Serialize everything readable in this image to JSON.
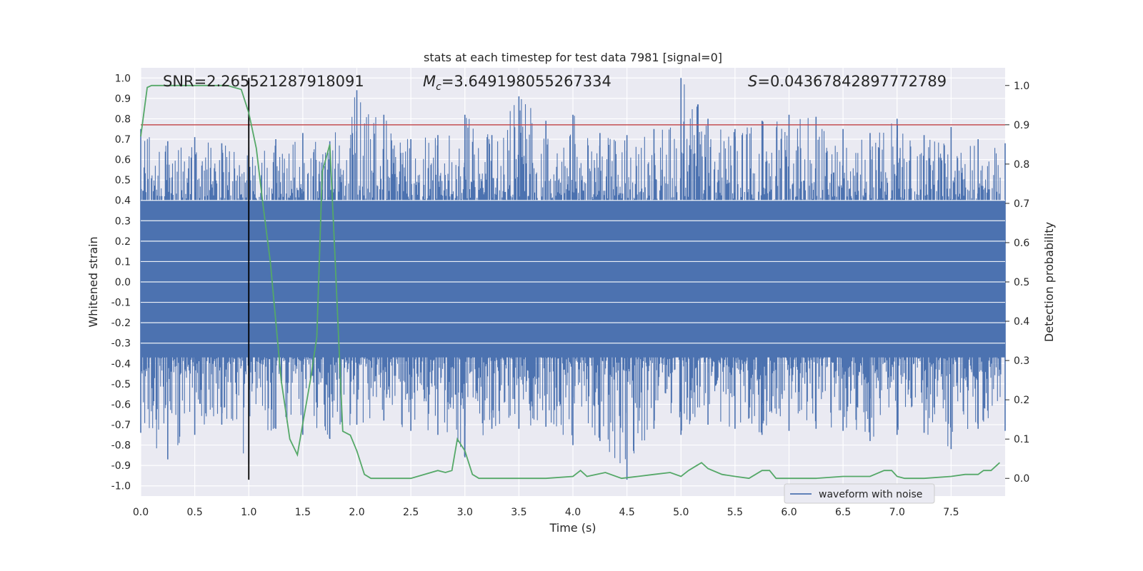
{
  "chart_data": {
    "type": "line",
    "title": "stats at each timestep for test data 7981 [signal=0]",
    "xlabel": "Time (s)",
    "ylabel": "Whitened strain",
    "y2label": "Detection probability",
    "xlim": [
      0,
      8
    ],
    "ylim": [
      -1.05,
      1.05
    ],
    "y2lim": [
      -0.045,
      1.045
    ],
    "x_ticks": [
      "0.0",
      "0.5",
      "1.0",
      "1.5",
      "2.0",
      "2.5",
      "3.0",
      "3.5",
      "4.0",
      "4.5",
      "5.0",
      "5.5",
      "6.0",
      "6.5",
      "7.0",
      "7.5"
    ],
    "y_ticks": [
      "1.0",
      "0.9",
      "0.8",
      "0.7",
      "0.6",
      "0.5",
      "0.4",
      "0.3",
      "0.2",
      "0.1",
      "0.0",
      "-0.1",
      "-0.2",
      "-0.3",
      "-0.4",
      "-0.5",
      "-0.6",
      "-0.7",
      "-0.8",
      "-0.9",
      "-1.0"
    ],
    "y2_ticks": [
      "1.0",
      "0.9",
      "0.8",
      "0.7",
      "0.6",
      "0.5",
      "0.4",
      "0.3",
      "0.2",
      "0.1",
      "0.0"
    ],
    "annotations": {
      "snr": "SNR=2.265521287918091",
      "mc_symbol": "M",
      "mc_sub": "c",
      "mc_value": "=3.649198055267334",
      "s_symbol": "S",
      "s_value": "=0.04367842897772789"
    },
    "threshold": {
      "value": 0.9,
      "axis": "y2",
      "color": "#c44e52"
    },
    "marker_line": {
      "x": 1.0,
      "y_range": [
        -0.97,
        1.0
      ],
      "color": "#000000"
    },
    "legend": {
      "label": "waveform with noise",
      "placement": "lower right"
    },
    "grid": true,
    "series": [
      {
        "name": "waveform with noise",
        "axis": "y",
        "color": "#4c72b0",
        "representation": "dense noise trace; sampled envelope",
        "x": [
          0.0,
          0.25,
          0.5,
          0.75,
          1.0,
          1.25,
          1.5,
          1.75,
          2.0,
          2.25,
          2.5,
          2.75,
          3.0,
          3.25,
          3.5,
          3.75,
          4.0,
          4.25,
          4.5,
          4.75,
          5.0,
          5.25,
          5.5,
          5.75,
          6.0,
          6.25,
          6.5,
          6.75,
          7.0,
          7.25,
          7.5,
          7.75,
          8.0
        ],
        "upper": [
          0.75,
          0.69,
          0.71,
          0.68,
          0.66,
          0.7,
          0.73,
          0.69,
          0.94,
          0.82,
          0.7,
          0.72,
          0.82,
          0.72,
          0.91,
          0.79,
          0.82,
          0.73,
          0.72,
          0.75,
          1.0,
          0.8,
          0.75,
          0.79,
          0.82,
          0.81,
          0.75,
          0.73,
          0.8,
          0.72,
          0.76,
          0.7,
          0.68
        ],
        "lower": [
          -0.74,
          -0.87,
          -0.75,
          -0.7,
          -0.89,
          -0.72,
          -0.75,
          -0.77,
          -0.7,
          -0.68,
          -0.73,
          -0.75,
          -0.86,
          -0.72,
          -0.72,
          -0.71,
          -0.8,
          -0.78,
          -0.97,
          -0.72,
          -0.75,
          -0.7,
          -0.72,
          -0.75,
          -0.73,
          -0.72,
          -0.73,
          -0.78,
          -0.75,
          -0.74,
          -0.82,
          -0.72,
          -0.73
        ]
      },
      {
        "name": "",
        "axis": "y2",
        "color": "#55a868",
        "x": [
          0.0,
          0.06,
          0.1,
          0.2,
          0.4,
          0.6,
          0.8,
          0.93,
          1.0,
          1.07,
          1.13,
          1.2,
          1.3,
          1.38,
          1.45,
          1.5,
          1.57,
          1.63,
          1.68,
          1.75,
          1.8,
          1.87,
          1.94,
          2.0,
          2.07,
          2.13,
          2.25,
          2.5,
          2.75,
          2.82,
          2.88,
          2.93,
          3.0,
          3.07,
          3.13,
          3.25,
          3.5,
          3.75,
          4.0,
          4.07,
          4.13,
          4.3,
          4.45,
          4.6,
          4.75,
          4.9,
          5.0,
          5.07,
          5.13,
          5.19,
          5.25,
          5.38,
          5.5,
          5.63,
          5.75,
          5.82,
          5.88,
          6.0,
          6.25,
          6.5,
          6.75,
          6.88,
          6.95,
          7.0,
          7.07,
          7.25,
          7.5,
          7.63,
          7.75,
          7.8,
          7.87,
          7.95
        ],
        "values": [
          0.87,
          0.995,
          1.0,
          1.0,
          1.0,
          1.0,
          1.0,
          0.99,
          0.93,
          0.84,
          0.7,
          0.55,
          0.25,
          0.1,
          0.06,
          0.14,
          0.25,
          0.36,
          0.78,
          0.85,
          0.55,
          0.12,
          0.11,
          0.07,
          0.01,
          0.0,
          0.0,
          0.0,
          0.02,
          0.015,
          0.02,
          0.1,
          0.07,
          0.01,
          0.0,
          0.0,
          0.0,
          0.0,
          0.005,
          0.02,
          0.005,
          0.015,
          0.0,
          0.005,
          0.01,
          0.015,
          0.005,
          0.02,
          0.03,
          0.04,
          0.025,
          0.01,
          0.005,
          0.0,
          0.02,
          0.02,
          0.0,
          0.0,
          0.0,
          0.005,
          0.005,
          0.02,
          0.02,
          0.005,
          0.0,
          0.0,
          0.005,
          0.01,
          0.01,
          0.02,
          0.02,
          0.04
        ]
      }
    ]
  }
}
